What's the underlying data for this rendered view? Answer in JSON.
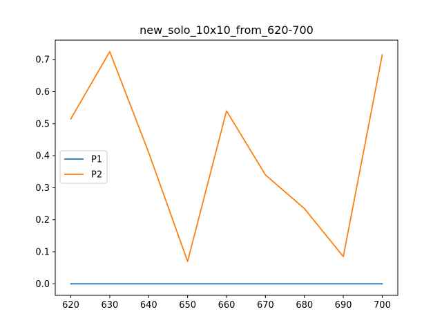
{
  "chart_data": {
    "type": "line",
    "title": "new_solo_10x10_from_620-700",
    "xlabel": "",
    "ylabel": "",
    "x": [
      620,
      630,
      640,
      650,
      660,
      670,
      680,
      690,
      700
    ],
    "series": [
      {
        "name": "P1",
        "color": "#1f77b4",
        "values": [
          0,
          0,
          0,
          0,
          0,
          0,
          0,
          0,
          0
        ]
      },
      {
        "name": "P2",
        "color": "#ff7f0e",
        "values": [
          0.515,
          0.725,
          0.41,
          0.07,
          0.54,
          0.34,
          0.235,
          0.085,
          0.715
        ]
      }
    ],
    "xlim": [
      616,
      704
    ],
    "ylim": [
      -0.036,
      0.761
    ],
    "xticks": [
      "620",
      "630",
      "640",
      "650",
      "660",
      "670",
      "680",
      "690",
      "700"
    ],
    "yticks": [
      "0.0",
      "0.1",
      "0.2",
      "0.3",
      "0.4",
      "0.5",
      "0.6",
      "0.7"
    ],
    "grid": false,
    "legend": "center-left"
  }
}
